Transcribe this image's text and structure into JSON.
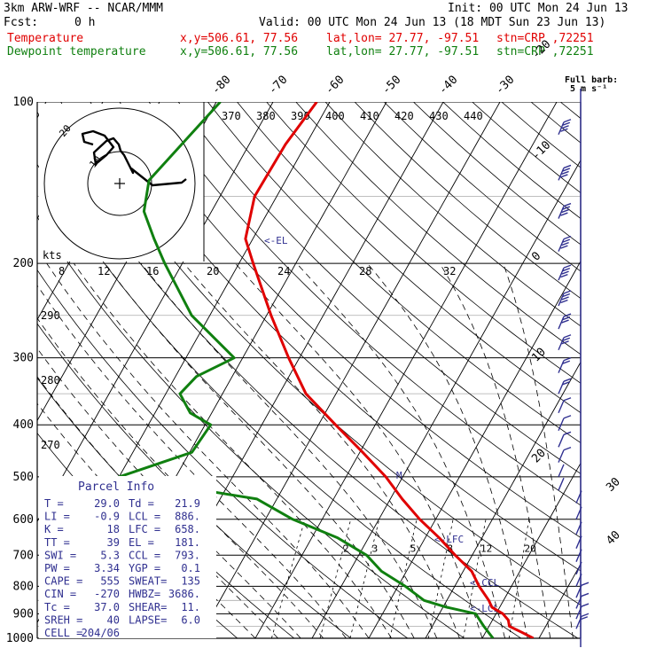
{
  "header": {
    "model": "3km ARW-WRF -- NCAR/MMM",
    "init": "Init: 00 UTC Mon 24 Jun 13",
    "fcst_label": "Fcst:",
    "fcst_value": "0 h",
    "valid": "Valid: 00 UTC Mon 24 Jun 13 (18 MDT Sun 23 Jun 13)",
    "temp_line": {
      "name": "Temperature",
      "xy": "x,y=506.61, 77.56",
      "latlon": "lat,lon= 27.77, -97.51",
      "stn": "stn=CRP ,72251"
    },
    "dew_line": {
      "name": "Dewpoint temperature",
      "xy": "x,y=506.61, 77.56",
      "latlon": "lat,lon= 27.77, -97.51",
      "stn": "stn=CRP ,72251"
    },
    "barb_title": "Full barb:",
    "barb_unit": "5 m s⁻¹"
  },
  "parcel": {
    "title": "Parcel Info",
    "rows": [
      [
        "T  =",
        "29.0",
        "Td =",
        "21.9"
      ],
      [
        "LI =",
        "-0.9",
        "LCL =",
        "886."
      ],
      [
        "K  =",
        "18",
        "LFC =",
        "658."
      ],
      [
        "TT =",
        "39",
        "EL =",
        "181."
      ],
      [
        "SWI =",
        "5.3",
        "CCL =",
        "793."
      ],
      [
        "PW =",
        "3.34",
        "YGP =",
        "0.1"
      ],
      [
        "CAPE =",
        "555",
        "SWEAT=",
        "135"
      ],
      [
        "CIN =",
        "-270",
        "HWBZ=",
        "3686."
      ],
      [
        "Tc =",
        "37.0",
        "SHEAR=",
        "11."
      ],
      [
        "SREH =",
        "40",
        "LAPSE=",
        "6.0"
      ],
      [
        "CELL =",
        "204/06",
        "",
        ""
      ]
    ]
  },
  "hodograph": {
    "units_label": "kts",
    "ring_labels": [
      "20",
      "10"
    ]
  },
  "level_markers": {
    "el": "<-EL",
    "lfc": "<-LFC",
    "ccl": "<-CCL",
    "lcl": "<-LCL",
    "m": "M"
  },
  "colors": {
    "temperature": "#e00000",
    "dewpoint": "#108010",
    "barbs": "#303090",
    "grid": "#000000"
  },
  "chart_data": {
    "type": "line",
    "title": "",
    "ylabel": "",
    "xlabel": "",
    "y_scale": "log pressure (hPa)",
    "ylim": [
      1000,
      100
    ],
    "pressure_ticks": [
      "100",
      "200",
      "300",
      "400",
      "500",
      "600",
      "700",
      "800",
      "900",
      "1000"
    ],
    "pressure_lines": [
      100,
      200,
      300,
      400,
      500,
      600,
      700,
      800,
      900,
      1000
    ],
    "thin_pressure_lines": [
      150,
      250,
      350,
      850,
      950
    ],
    "isotherm_labels": [
      "-80",
      "-70",
      "-60",
      "-50",
      "-40",
      "-30",
      "-20",
      "-10",
      "0",
      "10",
      "20",
      "30",
      "40"
    ],
    "theta_labels": [
      "370",
      "380",
      "390",
      "400",
      "410",
      "420",
      "430",
      "440"
    ],
    "mixing_labels": [
      "2",
      "3",
      "5",
      "8",
      "12",
      "20"
    ],
    "hodo_speed_labels": [
      "8",
      "12",
      "16",
      "20",
      "24",
      "28",
      "32"
    ],
    "dry_adiabat_labels": [
      "290",
      "280",
      "270"
    ],
    "series": [
      {
        "name": "Temperature",
        "color": "#e00000",
        "points": [
          [
            100,
            -62.3
          ],
          [
            120,
            -63.6
          ],
          [
            150,
            -63.9
          ],
          [
            180,
            -61.3
          ],
          [
            200,
            -57.5
          ],
          [
            250,
            -49.2
          ],
          [
            300,
            -41.9
          ],
          [
            350,
            -35.3
          ],
          [
            400,
            -27.0
          ],
          [
            450,
            -19.5
          ],
          [
            500,
            -13.0
          ],
          [
            550,
            -7.9
          ],
          [
            600,
            -2.8
          ],
          [
            650,
            2.5
          ],
          [
            700,
            7.0
          ],
          [
            750,
            11.5
          ],
          [
            800,
            14.3
          ],
          [
            850,
            17.4
          ],
          [
            875,
            18.6
          ],
          [
            900,
            21.2
          ],
          [
            925,
            22.8
          ],
          [
            950,
            23.6
          ],
          [
            975,
            26.4
          ],
          [
            1000,
            29.0
          ]
        ]
      },
      {
        "name": "Dewpoint temperature",
        "color": "#108010",
        "points": [
          [
            100,
            -79.3
          ],
          [
            120,
            -81.9
          ],
          [
            140,
            -84.1
          ],
          [
            160,
            -81.9
          ],
          [
            180,
            -77.4
          ],
          [
            200,
            -73.1
          ],
          [
            250,
            -63.2
          ],
          [
            300,
            -51.5
          ],
          [
            325,
            -56.3
          ],
          [
            350,
            -57.5
          ],
          [
            380,
            -53.8
          ],
          [
            400,
            -49.0
          ],
          [
            450,
            -49.6
          ],
          [
            500,
            -60.0
          ],
          [
            550,
            -33.5
          ],
          [
            600,
            -25.2
          ],
          [
            650,
            -15.4
          ],
          [
            700,
            -8.6
          ],
          [
            750,
            -4.4
          ],
          [
            800,
            1.3
          ],
          [
            850,
            6.0
          ],
          [
            875,
            10.6
          ],
          [
            900,
            16.4
          ],
          [
            950,
            19.1
          ],
          [
            1000,
            21.9
          ]
        ]
      }
    ],
    "hodograph_path": [
      [
        210,
        202
      ],
      [
        205,
        206
      ],
      [
        172,
        209
      ],
      [
        148,
        190
      ],
      [
        150,
        195
      ],
      [
        140,
        175
      ],
      [
        136,
        170
      ],
      [
        134,
        163
      ],
      [
        128,
        156
      ],
      [
        120,
        159
      ],
      [
        106,
        172
      ],
      [
        108,
        185
      ],
      [
        120,
        175
      ],
      [
        128,
        166
      ],
      [
        118,
        153
      ],
      [
        105,
        148
      ],
      [
        93,
        151
      ],
      [
        95,
        160
      ],
      [
        105,
        163
      ]
    ],
    "wind_barbs": {
      "pressures": [
        115,
        140,
        165,
        190,
        215,
        240,
        265,
        290,
        320,
        350,
        380,
        410,
        440,
        470,
        500,
        530,
        560,
        600,
        640,
        680,
        720,
        760,
        800,
        840,
        880,
        920,
        960
      ],
      "full_barbs": [
        4,
        4,
        4,
        4,
        4,
        4,
        3,
        3,
        2,
        2,
        1,
        1,
        1,
        1,
        0,
        0,
        0,
        0,
        0,
        0,
        0,
        0,
        0,
        1,
        1,
        1,
        2
      ]
    }
  }
}
